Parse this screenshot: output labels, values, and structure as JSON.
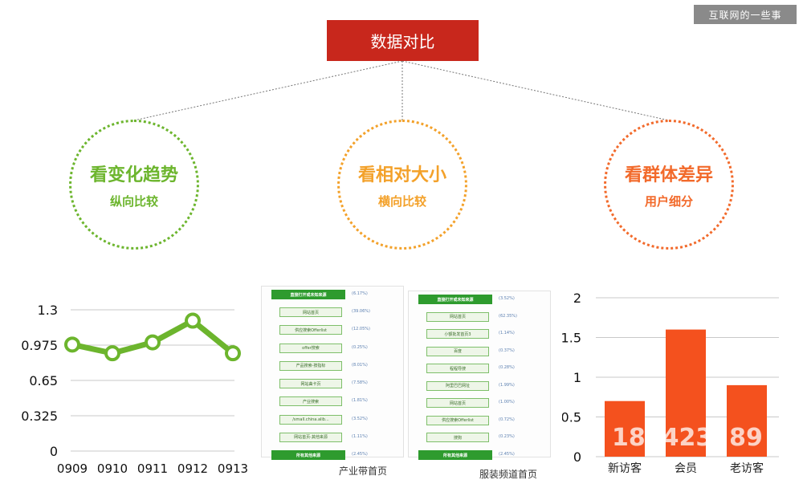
{
  "root": {
    "title": "数据对比"
  },
  "watermark": "互联网的一些事",
  "circles": [
    {
      "title": "看变化趋势",
      "subtitle": "纵向比较",
      "color": "#6cb52d"
    },
    {
      "title": "看相对大小",
      "subtitle": "横向比较",
      "color": "#f3a12a"
    },
    {
      "title": "看群体差异",
      "subtitle": "用户细分",
      "color": "#f26a2b"
    }
  ],
  "chart_data": [
    {
      "type": "line",
      "x": [
        "0909",
        "0910",
        "0911",
        "0912",
        "0913"
      ],
      "values": [
        0.98,
        0.9,
        1.0,
        1.2,
        0.9
      ],
      "ylim": [
        0,
        1.3
      ],
      "yticks": [
        "1.3",
        "0.975",
        "0.65",
        "0.325",
        "0"
      ],
      "ytick_values": [
        1.3,
        0.975,
        0.65,
        0.325,
        0
      ],
      "color": "#6cb52d",
      "grid": true
    },
    {
      "type": "bar",
      "categories": [
        "新访客",
        "会员",
        "老访客"
      ],
      "values": [
        0.7,
        1.6,
        0.9
      ],
      "ylim": [
        0,
        2
      ],
      "yticks": [
        "2",
        "1.5",
        "1",
        "0.5",
        "0"
      ],
      "ytick_values": [
        2,
        1.5,
        1,
        0.5,
        0
      ],
      "color": "#f4511e",
      "grid": true
    }
  ],
  "panels": [
    {
      "caption": "产业带首页",
      "items": [
        "直接打开或未知来源",
        "网站首页",
        "供应搜索Offerlist",
        "offer搜索",
        "产品搜索-按指标",
        "网站曲卡页",
        "产业搜索",
        "/small.china.alib...",
        "网站首页-其他来源",
        "所有其他来源"
      ],
      "values": [
        "(6.17%)",
        "(39.06%)",
        "(12.05%)",
        "(0.25%)",
        "(8.01%)",
        "(7.58%)",
        "(1.81%)",
        "(3.52%)",
        "(1.11%)",
        "(2.45%)"
      ]
    },
    {
      "caption": "服装频道首页",
      "items": [
        "直接打开或未知来源",
        "网站首页",
        "小额批发首页3",
        "百度",
        "程程导搜",
        "阿里巴巴网址",
        "网站首页",
        "供应搜索Offerlist",
        "搜狗",
        "所有其他来源"
      ],
      "values": [
        "(3.52%)",
        "(62.35%)",
        "(1.14%)",
        "(0.37%)",
        "(0.28%)",
        "(1.99%)",
        "(1.00%)",
        "(0.72%)",
        "(0.23%)",
        "(2.45%)"
      ]
    }
  ],
  "overlay_text": "18  423  89"
}
